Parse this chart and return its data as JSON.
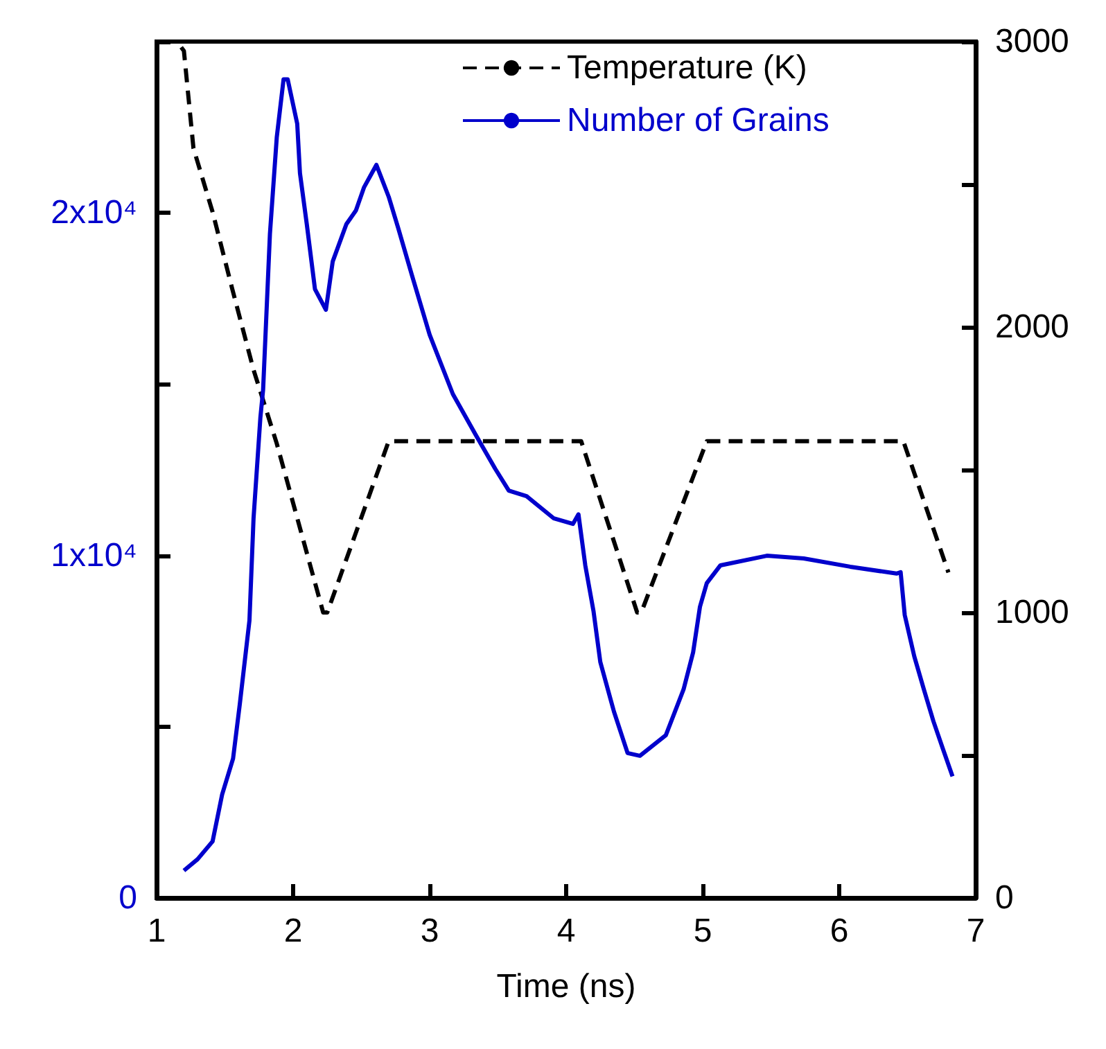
{
  "chart_data": {
    "type": "line",
    "xlabel": "Time (ns)",
    "xlim": [
      1,
      7
    ],
    "xticks": [
      1,
      2,
      3,
      4,
      5,
      6,
      7
    ],
    "ylim": [
      0,
      25000
    ],
    "yticks": [
      {
        "value": 0,
        "label": "0"
      },
      {
        "value": 5000,
        "label": null
      },
      {
        "value": 10000,
        "label": "1x10⁴"
      },
      {
        "value": 15000,
        "label": null
      },
      {
        "value": 20000,
        "label": "2x10⁴"
      },
      {
        "value": 25000,
        "label": null
      }
    ],
    "y2lim": [
      0,
      3000
    ],
    "y2ticks": [
      0,
      {
        "value": 500,
        "label": null
      },
      1000,
      {
        "value": 1500,
        "label": null
      },
      2000,
      {
        "value": 2500,
        "label": null
      },
      3000
    ],
    "legend": "top right",
    "grid": false,
    "marker": "none",
    "series": [
      {
        "name": "Temperature (K)",
        "color": "#000000",
        "axis": "y2",
        "line_style": "dashed",
        "x": [
          1.18,
          1.2,
          1.27,
          1.41,
          1.55,
          1.71,
          1.88,
          2.22,
          2.25,
          2.7,
          4.11,
          4.52,
          4.55,
          5.03,
          6.47,
          6.8
        ],
        "values": [
          2980,
          2967,
          2626,
          2403,
          2141,
          1850,
          1592,
          1000,
          1000,
          1600,
          1600,
          1000,
          1000,
          1600,
          1600,
          1140
        ]
      },
      {
        "name": "Number of Grains",
        "color": "#0000cc",
        "axis": "y",
        "line_style": "solid",
        "x": [
          1.2,
          1.3,
          1.41,
          1.48,
          1.56,
          1.61,
          1.68,
          1.71,
          1.76,
          1.78,
          1.83,
          1.88,
          1.93,
          1.96,
          2.03,
          2.05,
          2.1,
          2.16,
          2.24,
          2.29,
          2.39,
          2.46,
          2.52,
          2.61,
          2.7,
          2.77,
          2.87,
          3.0,
          3.17,
          3.34,
          3.48,
          3.58,
          3.71,
          3.91,
          4.05,
          4.09,
          4.14,
          4.2,
          4.25,
          4.35,
          4.45,
          4.54,
          4.73,
          4.86,
          4.93,
          4.98,
          5.03,
          5.13,
          5.47,
          5.74,
          6.08,
          6.42,
          6.45,
          6.48,
          6.55,
          6.62,
          6.69,
          6.76,
          6.83
        ],
        "values": [
          800,
          1130,
          1650,
          3020,
          4070,
          5680,
          8100,
          11080,
          14020,
          14830,
          19380,
          22200,
          23900,
          23900,
          22600,
          21160,
          19670,
          17770,
          17170,
          18580,
          19670,
          20070,
          20750,
          21400,
          20470,
          19550,
          18180,
          16440,
          14710,
          13500,
          12530,
          11890,
          11730,
          11080,
          10920,
          11200,
          9710,
          8380,
          6890,
          5440,
          4230,
          4150,
          4750,
          6090,
          7170,
          8500,
          9190,
          9710,
          9990,
          9910,
          9670,
          9470,
          9510,
          8260,
          7050,
          6090,
          5160,
          4350,
          3550
        ]
      }
    ]
  }
}
